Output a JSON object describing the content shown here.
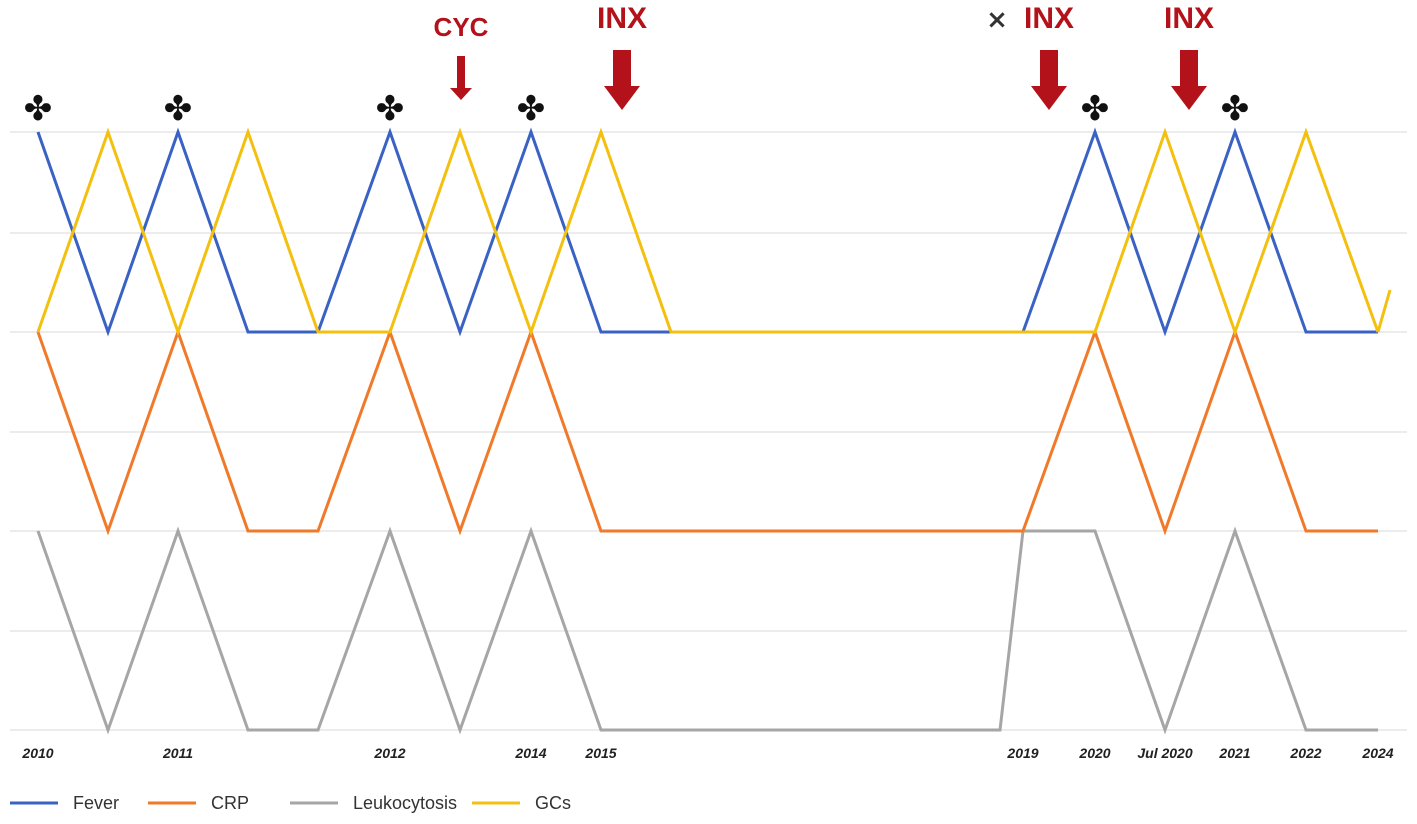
{
  "chart_data": {
    "type": "line",
    "title": "",
    "xlabel": "",
    "ylabel": "",
    "categories": [
      "2010",
      "",
      "2011",
      "",
      "",
      "2012",
      "",
      "2014",
      "2015",
      "",
      "",
      "",
      "",
      "",
      "",
      "2019",
      "2020",
      "Jul 2020",
      "2021",
      "2022",
      "2024"
    ],
    "series": [
      {
        "name": "Fever",
        "color": "#3a62c4",
        "values": [
          1,
          0,
          1,
          0,
          0,
          1,
          0,
          1,
          0,
          0,
          0,
          0,
          0,
          0,
          0,
          0,
          1,
          0,
          1,
          0,
          0
        ]
      },
      {
        "name": "CRP",
        "color": "#f07a2a",
        "values": [
          1,
          0,
          1,
          0,
          0,
          1,
          0,
          1,
          0,
          0,
          0,
          0,
          0,
          0,
          0,
          0,
          1,
          0,
          1,
          0,
          0
        ]
      },
      {
        "name": "Leukocytosis",
        "color": "#a6a6a6",
        "values": [
          1,
          0,
          1,
          0,
          0,
          1,
          0,
          1,
          0,
          0,
          0,
          0,
          0,
          0,
          0,
          1,
          1,
          0,
          1,
          0,
          0
        ]
      },
      {
        "name": "GCs",
        "color": "#f4c010",
        "values": [
          0,
          1,
          0,
          1,
          0,
          0,
          1,
          0,
          1,
          0,
          0,
          0,
          0,
          0,
          0,
          0,
          0,
          1,
          0,
          1,
          0
        ]
      }
    ],
    "grid": true,
    "legend": "bottom-left",
    "annotations": [
      {
        "label": "CYC",
        "type": "arrow",
        "at": "between 2012 and 2014",
        "color": "#b3121a"
      },
      {
        "label": "INX",
        "type": "arrow",
        "at": "2015",
        "color": "#b3121a"
      },
      {
        "label": "INX",
        "type": "arrow",
        "at": "between 2019 and 2020",
        "color": "#b3121a",
        "marker": "×"
      },
      {
        "label": "INX",
        "type": "arrow",
        "at": "between 2020 and Jul 2020",
        "color": "#b3121a"
      }
    ],
    "flare_marker": "✤",
    "flare_at": [
      "2010",
      "2011",
      "2012",
      "2014",
      "2020",
      "2021"
    ]
  }
}
